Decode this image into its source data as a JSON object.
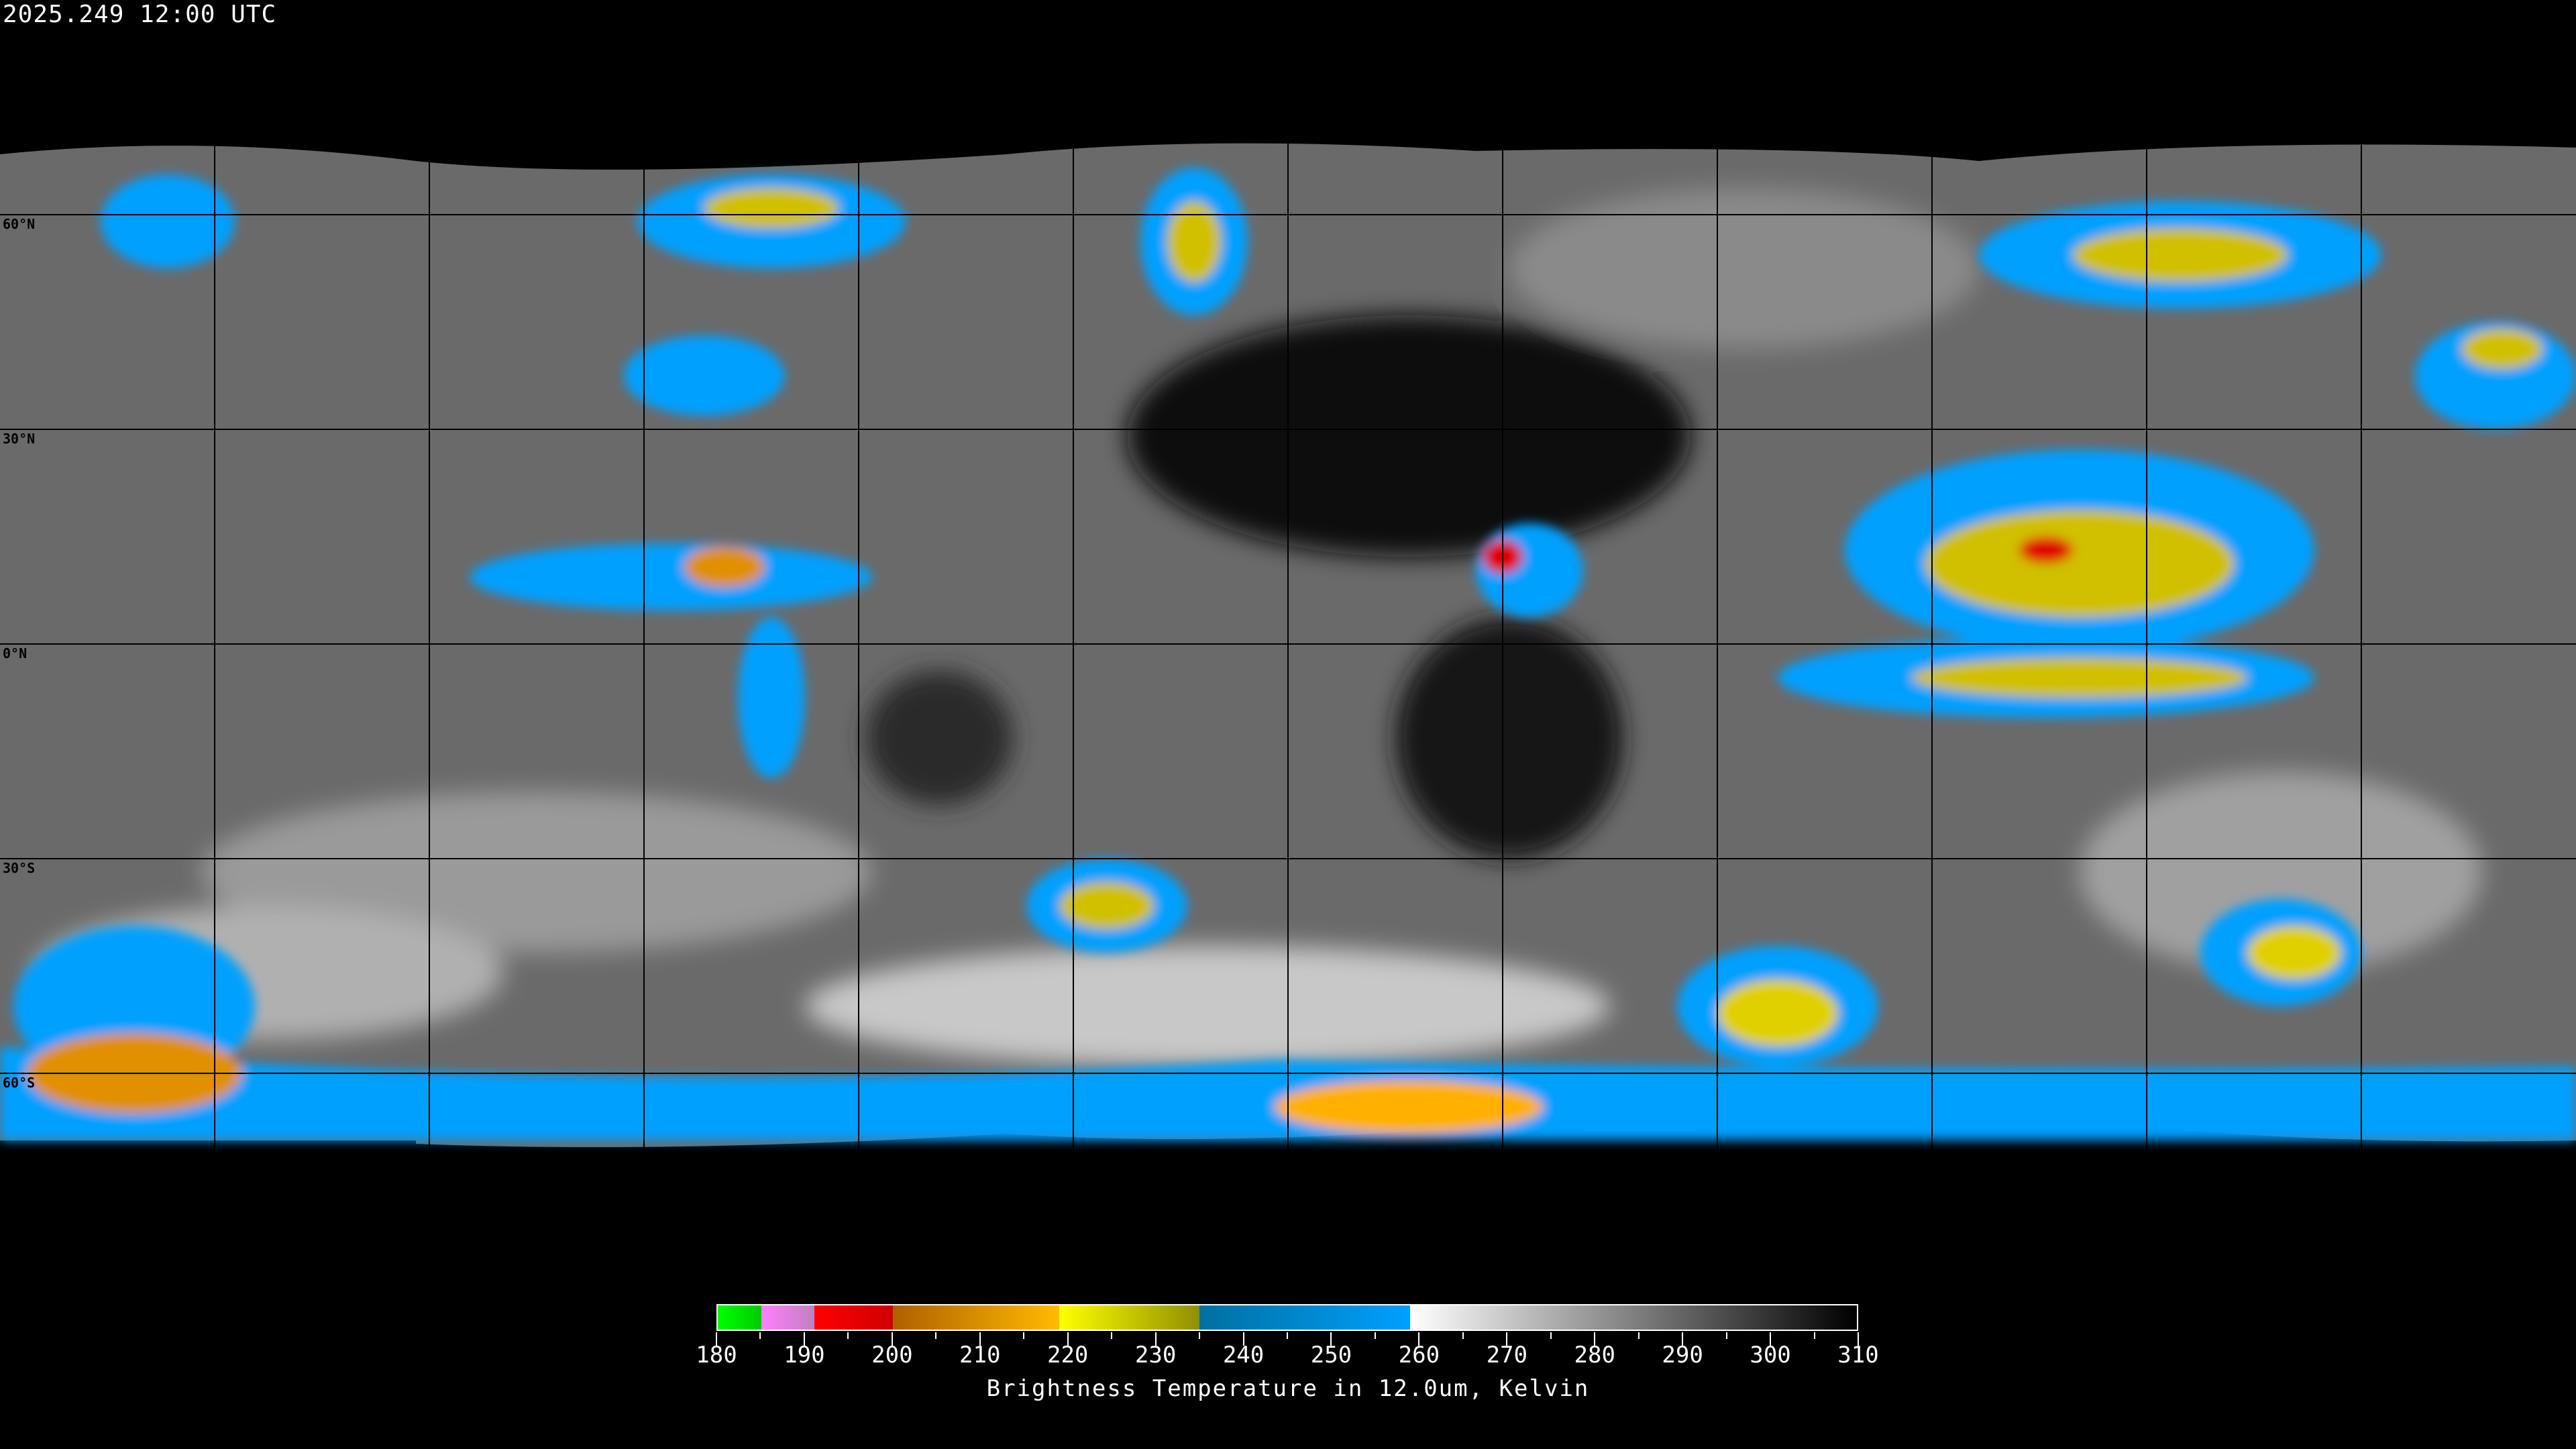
{
  "header": {
    "timestamp": "2025.249 12:00 UTC"
  },
  "map": {
    "lat_labels": [
      "60°N",
      "30°N",
      "0°N",
      "30°S",
      "60°S"
    ],
    "graticule_spacing_deg": 30
  },
  "colorbar": {
    "title": "Brightness Temperature in 12.0um, Kelvin",
    "range": [
      180,
      310
    ],
    "tick_labels": [
      "180",
      "190",
      "200",
      "210",
      "220",
      "230",
      "240",
      "250",
      "260",
      "270",
      "280",
      "290",
      "300",
      "310"
    ],
    "segments": [
      {
        "from": 180,
        "to": 185,
        "start": "#00ff00",
        "end": "#00cc00"
      },
      {
        "from": 185,
        "to": 191,
        "start": "#ff80ff",
        "end": "#c080c0"
      },
      {
        "from": 191,
        "to": 200,
        "start": "#ff0000",
        "end": "#d00000"
      },
      {
        "from": 200,
        "to": 219,
        "start": "#b06000",
        "end": "#ffbb00"
      },
      {
        "from": 219,
        "to": 235,
        "start": "#ffff00",
        "end": "#909000"
      },
      {
        "from": 235,
        "to": 259,
        "start": "#0070a0",
        "end": "#00a0ff"
      },
      {
        "from": 259,
        "to": 310,
        "start": "#ffffff",
        "end": "#000000"
      }
    ]
  }
}
